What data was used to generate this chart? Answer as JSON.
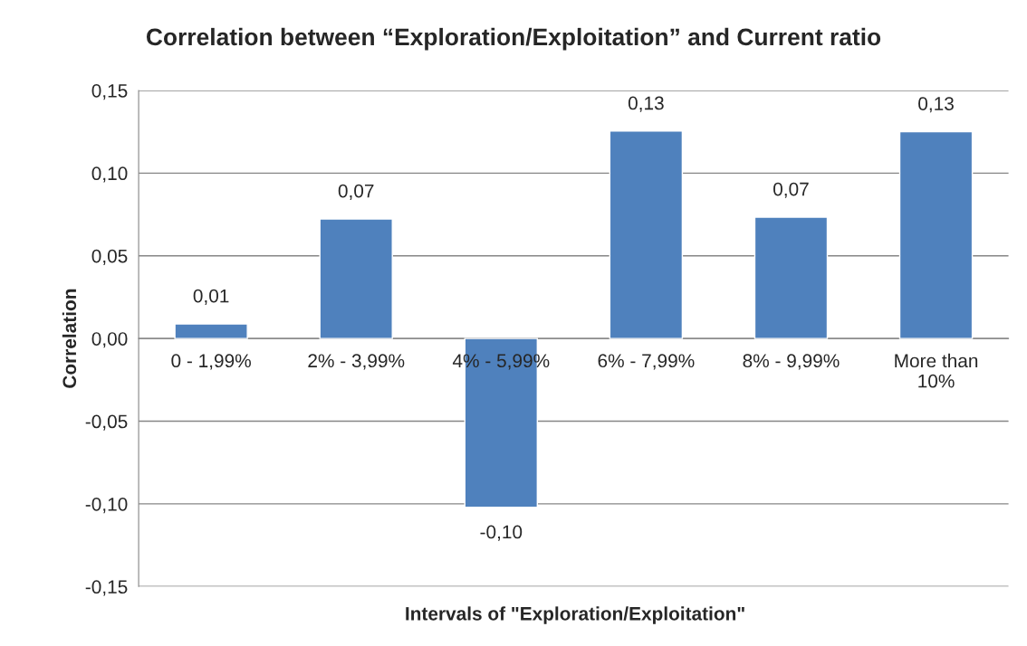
{
  "chart_data": {
    "type": "bar",
    "title": "Correlation between “Exploration/Exploitation” and Current ratio",
    "xlabel": "Intervals of \"Exploration/Exploitation\"",
    "ylabel": "Correlation",
    "categories": [
      "0 - 1,99%",
      "2% - 3,99%",
      "4% - 5,99%",
      "6% - 7,99%",
      "8% - 9,99%",
      "More than\n10%"
    ],
    "series": [
      {
        "color": "#4f81bd",
        "values": [
          0.0088,
          0.0723,
          -0.102,
          0.1254,
          0.0734,
          0.1251
        ],
        "value_labels": [
          "0,01",
          "0,07",
          "-0,10",
          "0,13",
          "0,07",
          "0,13"
        ]
      }
    ],
    "ylim": [
      -0.15,
      0.15
    ],
    "yticks": [
      {
        "value": -0.15,
        "label": "-0,15"
      },
      {
        "value": -0.1,
        "label": "-0,10"
      },
      {
        "value": -0.05,
        "label": "-0,05"
      },
      {
        "value": 0,
        "label": "0,00"
      },
      {
        "value": 0.05,
        "label": "0,05"
      },
      {
        "value": 0.1,
        "label": "0,10"
      },
      {
        "value": 0.15,
        "label": "0,15"
      }
    ],
    "grid": "y",
    "legend": false
  }
}
